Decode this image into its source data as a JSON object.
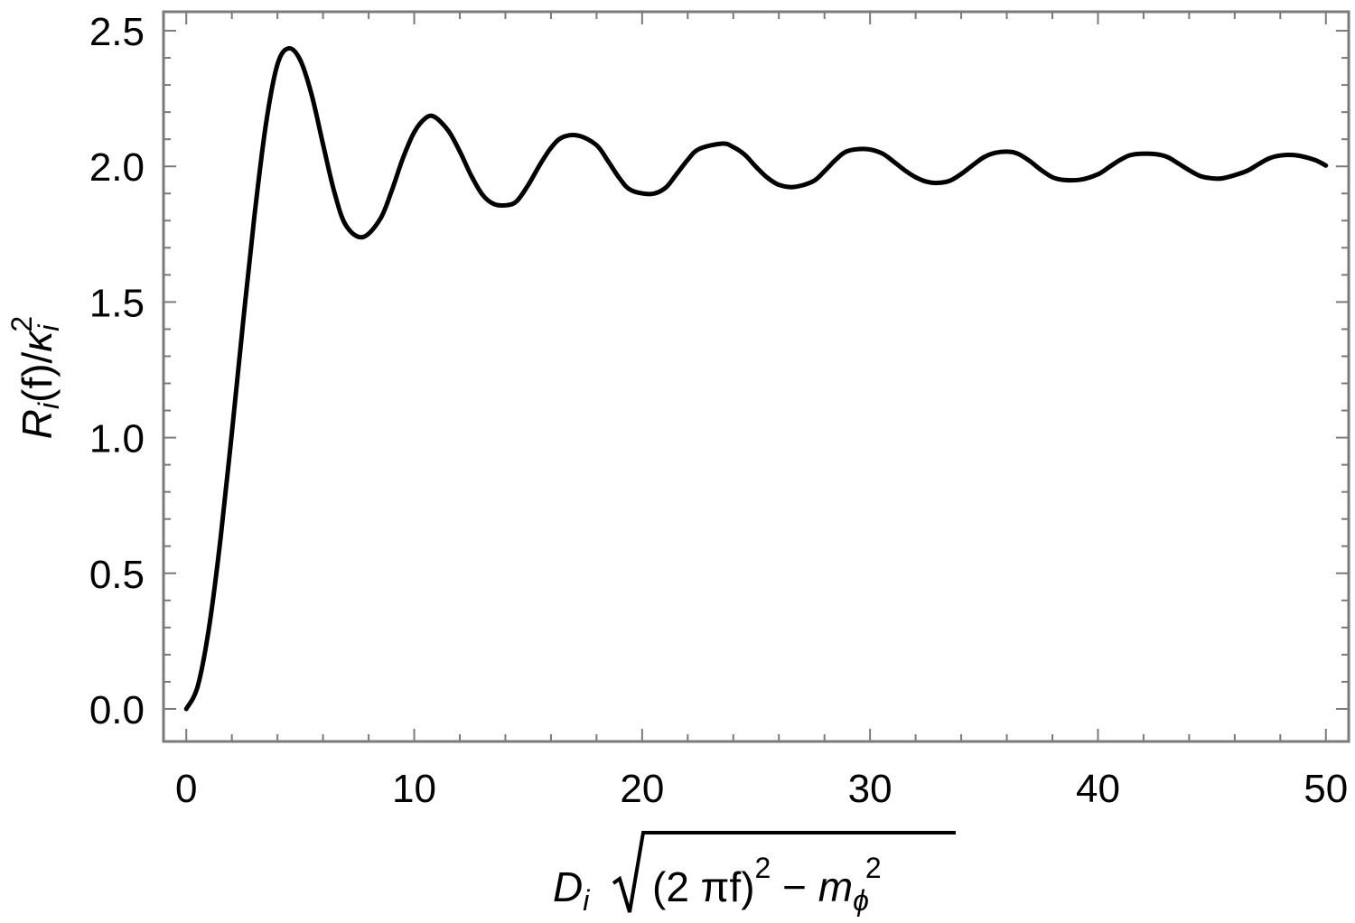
{
  "chart_data": {
    "type": "line",
    "title": "",
    "xlabel": {
      "base": "D",
      "sub": "i",
      "radicand_open": "(2 πf)",
      "sup1": "2",
      "minus": " − ",
      "m": "m",
      "m_sub": "ϕ",
      "sup2": "2"
    },
    "ylabel": {
      "R": "R",
      "R_sub": "i",
      "mid": "(f)/",
      "kappa": "κ",
      "kappa_sub": "i",
      "kappa_sup": "2"
    },
    "xlim": [
      -1,
      51
    ],
    "ylim": [
      -0.12,
      2.57
    ],
    "xticks": [
      {
        "value": 0,
        "label": "0"
      },
      {
        "value": 10,
        "label": "10"
      },
      {
        "value": 20,
        "label": "20"
      },
      {
        "value": 30,
        "label": "30"
      },
      {
        "value": 40,
        "label": "40"
      },
      {
        "value": 50,
        "label": "50"
      }
    ],
    "yticks": [
      {
        "value": 0.0,
        "label": "0.0"
      },
      {
        "value": 0.5,
        "label": "0.5"
      },
      {
        "value": 1.0,
        "label": "1.0"
      },
      {
        "value": 1.5,
        "label": "1.5"
      },
      {
        "value": 2.0,
        "label": "2.0"
      },
      {
        "value": 2.5,
        "label": "2.5"
      }
    ],
    "grid": false,
    "series": [
      {
        "color": "#000000",
        "x": [
          0,
          0.5,
          1.0,
          1.5,
          2.0,
          2.5,
          3.0,
          3.5,
          4.0,
          4.49,
          5.0,
          5.5,
          6.0,
          6.5,
          7.0,
          7.73,
          8.5,
          9.0,
          9.5,
          10.0,
          10.5,
          10.9,
          11.5,
          12.0,
          12.5,
          13.0,
          13.5,
          14.07,
          14.5,
          15.0,
          15.5,
          16.0,
          16.5,
          17.22,
          18.0,
          18.5,
          19.0,
          19.5,
          20.38,
          21.0,
          21.5,
          22.0,
          22.5,
          23.52,
          24.0,
          24.5,
          25.0,
          25.5,
          26.0,
          26.67,
          27.5,
          28.0,
          28.5,
          29.0,
          29.81,
          30.5,
          31.0,
          31.5,
          32.0,
          32.5,
          32.96,
          33.5,
          34.0,
          34.5,
          35.0,
          35.5,
          36.1,
          36.5,
          37.0,
          37.5,
          38.0,
          38.5,
          39.24,
          40.0,
          40.5,
          41.0,
          41.5,
          42.39,
          43.0,
          43.5,
          44.0,
          44.5,
          45.0,
          45.53,
          46.5,
          47.0,
          47.5,
          48.0,
          48.67,
          49.5,
          50.0
        ],
        "y": [
          0,
          0.083,
          0.301,
          0.626,
          1.018,
          1.432,
          1.825,
          2.159,
          2.376,
          2.435,
          2.392,
          2.264,
          2.081,
          1.904,
          1.783,
          1.739,
          1.805,
          1.907,
          2.029,
          2.126,
          2.178,
          2.182,
          2.131,
          2.055,
          1.966,
          1.895,
          1.861,
          1.857,
          1.872,
          1.931,
          2.004,
          2.068,
          2.107,
          2.113,
          2.078,
          2.02,
          1.957,
          1.913,
          1.898,
          1.919,
          1.97,
          2.024,
          2.064,
          2.084,
          2.071,
          2.043,
          1.998,
          1.958,
          1.932,
          1.924,
          1.945,
          1.982,
          2.025,
          2.056,
          2.064,
          2.049,
          2.02,
          1.987,
          1.96,
          1.943,
          1.939,
          1.947,
          1.972,
          2.004,
          2.034,
          2.05,
          2.054,
          2.046,
          2.02,
          1.987,
          1.96,
          1.95,
          1.951,
          1.971,
          1.998,
          2.025,
          2.043,
          2.046,
          2.036,
          2.012,
          1.986,
          1.964,
          1.956,
          1.957,
          1.982,
          2.006,
          2.029,
          2.04,
          2.041,
          2.024,
          2.003
        ]
      }
    ]
  }
}
